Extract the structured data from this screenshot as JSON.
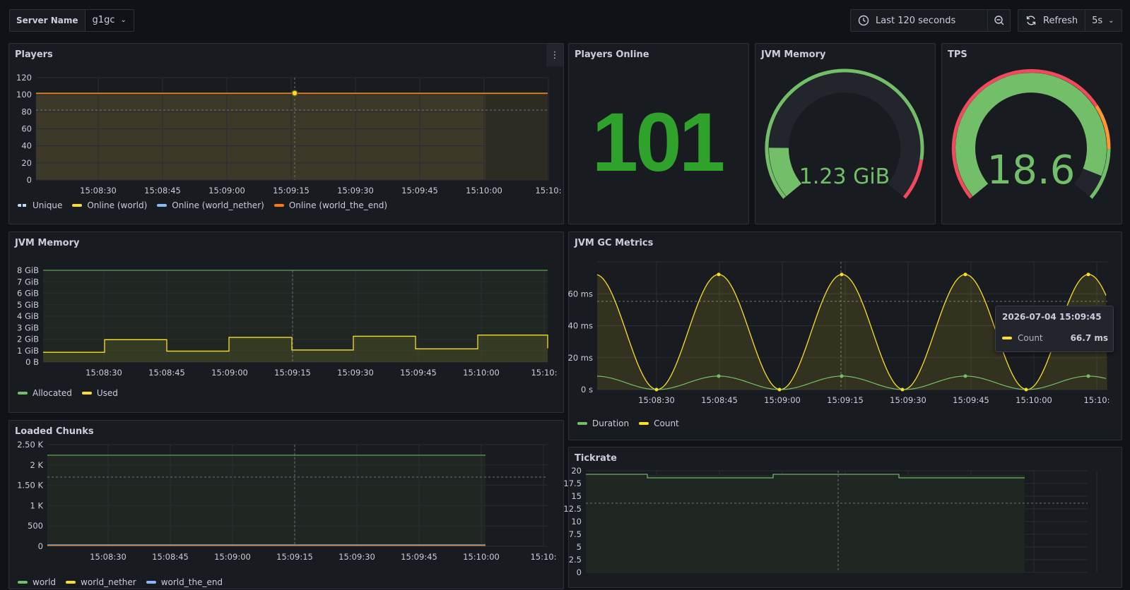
{
  "topbar": {
    "variable_label": "Server Name",
    "variable_value": "g1gc",
    "time_range": "Last 120 seconds",
    "refresh_label": "Refresh",
    "refresh_interval": "5s"
  },
  "colors": {
    "green": "#73bf69",
    "yellow": "#fade2a",
    "blue": "#8ab8ff",
    "orange": "#ff780a",
    "red": "#f2495c",
    "stat_green": "#2ea22a"
  },
  "time_ticks": [
    "15:08:30",
    "15:08:45",
    "15:09:00",
    "15:09:15",
    "15:09:30",
    "15:09:45",
    "15:10:00",
    "15:10:"
  ],
  "players": {
    "title": "Players",
    "legend": [
      "Unique",
      "Online (world)",
      "Online (world_nether)",
      "Online (world_the_end)"
    ],
    "y_ticks": [
      "120",
      "100",
      "80",
      "60",
      "40",
      "20",
      "0"
    ]
  },
  "players_online": {
    "title": "Players Online",
    "value": "101"
  },
  "jvm_gauge": {
    "title": "JVM Memory",
    "value": "1.23 GiB",
    "fraction": 0.154
  },
  "tps_gauge": {
    "title": "TPS",
    "value": "18.6",
    "fraction": 0.93
  },
  "jvm_memory": {
    "title": "JVM Memory",
    "legend": [
      "Allocated",
      "Used"
    ],
    "y_ticks": [
      "8 GiB",
      "7 GiB",
      "6 GiB",
      "5 GiB",
      "4 GiB",
      "3 GiB",
      "2 GiB",
      "1 GiB",
      "0 B"
    ]
  },
  "gc": {
    "title": "JVM GC Metrics",
    "legend": [
      "Duration",
      "Count"
    ],
    "y_ticks": [
      "60 ms",
      "40 ms",
      "20 ms",
      "0 s"
    ],
    "tooltip": {
      "time": "2026-07-04 15:09:45",
      "series": "Count",
      "value": "66.7 ms"
    }
  },
  "chunks": {
    "title": "Loaded Chunks",
    "legend": [
      "world",
      "world_nether",
      "world_the_end"
    ],
    "y_ticks": [
      "2.50 K",
      "2 K",
      "1.50 K",
      "1 K",
      "500",
      "0"
    ]
  },
  "tickrate": {
    "title": "Tickrate",
    "y_ticks": [
      "20",
      "17.5",
      "15",
      "12.5",
      "10",
      "7.5",
      "5",
      "2.5",
      "0"
    ]
  }
}
